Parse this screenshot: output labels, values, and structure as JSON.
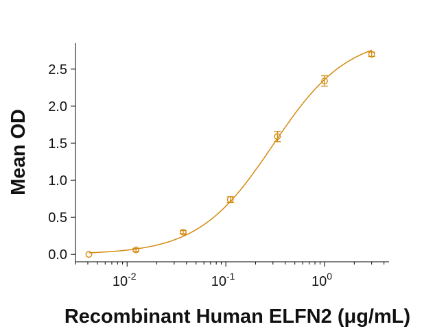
{
  "chart_data": {
    "type": "scatter",
    "title": "",
    "xlabel": "Recombinant Human ELFN2 (μg/mL)",
    "ylabel": "Mean OD",
    "x_scale": "log",
    "xlim": [
      0.003,
      4.5
    ],
    "ylim": [
      -0.1,
      2.85
    ],
    "grid": false,
    "legend": "none",
    "color": "#D4890F",
    "x_ticks": [
      {
        "value": 0.01,
        "base": "10",
        "exp": "-2"
      },
      {
        "value": 0.1,
        "base": "10",
        "exp": "-1"
      },
      {
        "value": 1,
        "base": "10",
        "exp": "0"
      }
    ],
    "y_ticks": [
      {
        "value": 0.0,
        "label": "0.0"
      },
      {
        "value": 0.5,
        "label": "0.5"
      },
      {
        "value": 1.0,
        "label": "1.0"
      },
      {
        "value": 1.5,
        "label": "1.5"
      },
      {
        "value": 2.0,
        "label": "2.0"
      },
      {
        "value": 2.5,
        "label": "2.5"
      }
    ],
    "series": [
      {
        "points": [
          {
            "x": 0.0041,
            "y": 0.0,
            "err": 0.01
          },
          {
            "x": 0.0123,
            "y": 0.06,
            "err": 0.02
          },
          {
            "x": 0.037,
            "y": 0.3,
            "err": 0.02
          },
          {
            "x": 0.111,
            "y": 0.74,
            "err": 0.04
          },
          {
            "x": 0.333,
            "y": 1.59,
            "err": 0.07
          },
          {
            "x": 1.0,
            "y": 2.34,
            "err": 0.07
          },
          {
            "x": 3.0,
            "y": 2.7,
            "err": 0.03
          }
        ],
        "fit": {
          "bottom": 0.0,
          "top": 2.95,
          "ec50": 0.3,
          "hill": 1.15
        }
      }
    ]
  }
}
